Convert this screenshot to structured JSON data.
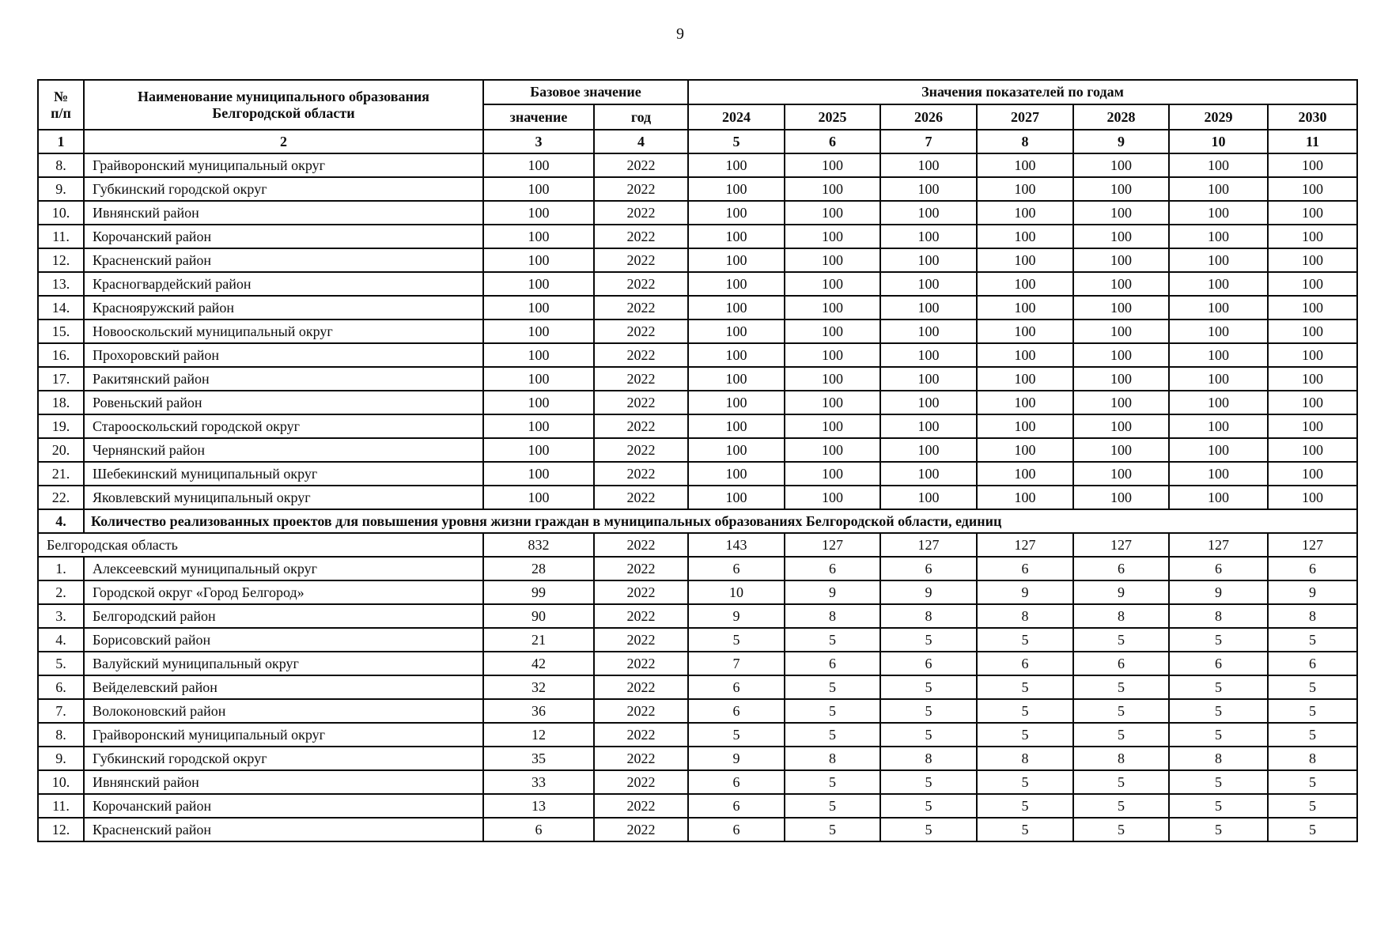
{
  "page": {
    "number": "9"
  },
  "table": {
    "header": {
      "col_num_line1": "№",
      "col_num_line2": "п/п",
      "name_line1": "Наименование муниципального образования",
      "name_line2": "Белгородской области",
      "base_group": "Базовое значение",
      "base_value": "значение",
      "base_year": "год",
      "years_group": "Значения показателей по годам",
      "years": [
        "2024",
        "2025",
        "2026",
        "2027",
        "2028",
        "2029",
        "2030"
      ],
      "index_row": [
        "1",
        "2",
        "3",
        "4",
        "5",
        "6",
        "7",
        "8",
        "9",
        "10",
        "11"
      ]
    },
    "section1_rows": [
      {
        "num": "8.",
        "name": "Грайворонский муниципальный округ",
        "base": "100",
        "year": "2022",
        "values": [
          "100",
          "100",
          "100",
          "100",
          "100",
          "100",
          "100"
        ]
      },
      {
        "num": "9.",
        "name": "Губкинский городской округ",
        "base": "100",
        "year": "2022",
        "values": [
          "100",
          "100",
          "100",
          "100",
          "100",
          "100",
          "100"
        ]
      },
      {
        "num": "10.",
        "name": "Ивнянский район",
        "base": "100",
        "year": "2022",
        "values": [
          "100",
          "100",
          "100",
          "100",
          "100",
          "100",
          "100"
        ]
      },
      {
        "num": "11.",
        "name": "Корочанский район",
        "base": "100",
        "year": "2022",
        "values": [
          "100",
          "100",
          "100",
          "100",
          "100",
          "100",
          "100"
        ]
      },
      {
        "num": "12.",
        "name": "Красненский район",
        "base": "100",
        "year": "2022",
        "values": [
          "100",
          "100",
          "100",
          "100",
          "100",
          "100",
          "100"
        ]
      },
      {
        "num": "13.",
        "name": "Красногвардейский район",
        "base": "100",
        "year": "2022",
        "values": [
          "100",
          "100",
          "100",
          "100",
          "100",
          "100",
          "100"
        ]
      },
      {
        "num": "14.",
        "name": "Краснояружский район",
        "base": "100",
        "year": "2022",
        "values": [
          "100",
          "100",
          "100",
          "100",
          "100",
          "100",
          "100"
        ]
      },
      {
        "num": "15.",
        "name": "Новооскольский муниципальный округ",
        "base": "100",
        "year": "2022",
        "values": [
          "100",
          "100",
          "100",
          "100",
          "100",
          "100",
          "100"
        ]
      },
      {
        "num": "16.",
        "name": "Прохоровский район",
        "base": "100",
        "year": "2022",
        "values": [
          "100",
          "100",
          "100",
          "100",
          "100",
          "100",
          "100"
        ]
      },
      {
        "num": "17.",
        "name": "Ракитянский район",
        "base": "100",
        "year": "2022",
        "values": [
          "100",
          "100",
          "100",
          "100",
          "100",
          "100",
          "100"
        ]
      },
      {
        "num": "18.",
        "name": "Ровеньский район",
        "base": "100",
        "year": "2022",
        "values": [
          "100",
          "100",
          "100",
          "100",
          "100",
          "100",
          "100"
        ]
      },
      {
        "num": "19.",
        "name": "Старооскольский городской округ",
        "base": "100",
        "year": "2022",
        "values": [
          "100",
          "100",
          "100",
          "100",
          "100",
          "100",
          "100"
        ]
      },
      {
        "num": "20.",
        "name": "Чернянский район",
        "base": "100",
        "year": "2022",
        "values": [
          "100",
          "100",
          "100",
          "100",
          "100",
          "100",
          "100"
        ]
      },
      {
        "num": "21.",
        "name": "Шебекинский муниципальный округ",
        "base": "100",
        "year": "2022",
        "values": [
          "100",
          "100",
          "100",
          "100",
          "100",
          "100",
          "100"
        ]
      },
      {
        "num": "22.",
        "name": "Яковлевский муниципальный округ",
        "base": "100",
        "year": "2022",
        "values": [
          "100",
          "100",
          "100",
          "100",
          "100",
          "100",
          "100"
        ]
      }
    ],
    "section2": {
      "num": "4.",
      "title": "Количество реализованных проектов для повышения уровня жизни граждан в муниципальных образованиях Белгородской области, единиц",
      "region_row": {
        "name": "Белгородская область",
        "base": "832",
        "year": "2022",
        "values": [
          "143",
          "127",
          "127",
          "127",
          "127",
          "127",
          "127"
        ]
      },
      "rows": [
        {
          "num": "1.",
          "name": "Алексеевский муниципальный округ",
          "base": "28",
          "year": "2022",
          "values": [
            "6",
            "6",
            "6",
            "6",
            "6",
            "6",
            "6"
          ]
        },
        {
          "num": "2.",
          "name": "Городской округ «Город Белгород»",
          "base": "99",
          "year": "2022",
          "values": [
            "10",
            "9",
            "9",
            "9",
            "9",
            "9",
            "9"
          ]
        },
        {
          "num": "3.",
          "name": "Белгородский район",
          "base": "90",
          "year": "2022",
          "values": [
            "9",
            "8",
            "8",
            "8",
            "8",
            "8",
            "8"
          ]
        },
        {
          "num": "4.",
          "name": "Борисовский район",
          "base": "21",
          "year": "2022",
          "values": [
            "5",
            "5",
            "5",
            "5",
            "5",
            "5",
            "5"
          ]
        },
        {
          "num": "5.",
          "name": "Валуйский муниципальный округ",
          "base": "42",
          "year": "2022",
          "values": [
            "7",
            "6",
            "6",
            "6",
            "6",
            "6",
            "6"
          ]
        },
        {
          "num": "6.",
          "name": "Вейделевский район",
          "base": "32",
          "year": "2022",
          "values": [
            "6",
            "5",
            "5",
            "5",
            "5",
            "5",
            "5"
          ]
        },
        {
          "num": "7.",
          "name": "Волоконовский район",
          "base": "36",
          "year": "2022",
          "values": [
            "6",
            "5",
            "5",
            "5",
            "5",
            "5",
            "5"
          ]
        },
        {
          "num": "8.",
          "name": "Грайворонский муниципальный округ",
          "base": "12",
          "year": "2022",
          "values": [
            "5",
            "5",
            "5",
            "5",
            "5",
            "5",
            "5"
          ]
        },
        {
          "num": "9.",
          "name": "Губкинский городской округ",
          "base": "35",
          "year": "2022",
          "values": [
            "9",
            "8",
            "8",
            "8",
            "8",
            "8",
            "8"
          ]
        },
        {
          "num": "10.",
          "name": "Ивнянский район",
          "base": "33",
          "year": "2022",
          "values": [
            "6",
            "5",
            "5",
            "5",
            "5",
            "5",
            "5"
          ]
        },
        {
          "num": "11.",
          "name": "Корочанский район",
          "base": "13",
          "year": "2022",
          "values": [
            "6",
            "5",
            "5",
            "5",
            "5",
            "5",
            "5"
          ]
        },
        {
          "num": "12.",
          "name": "Красненский район",
          "base": "6",
          "year": "2022",
          "values": [
            "6",
            "5",
            "5",
            "5",
            "5",
            "5",
            "5"
          ]
        }
      ]
    }
  }
}
